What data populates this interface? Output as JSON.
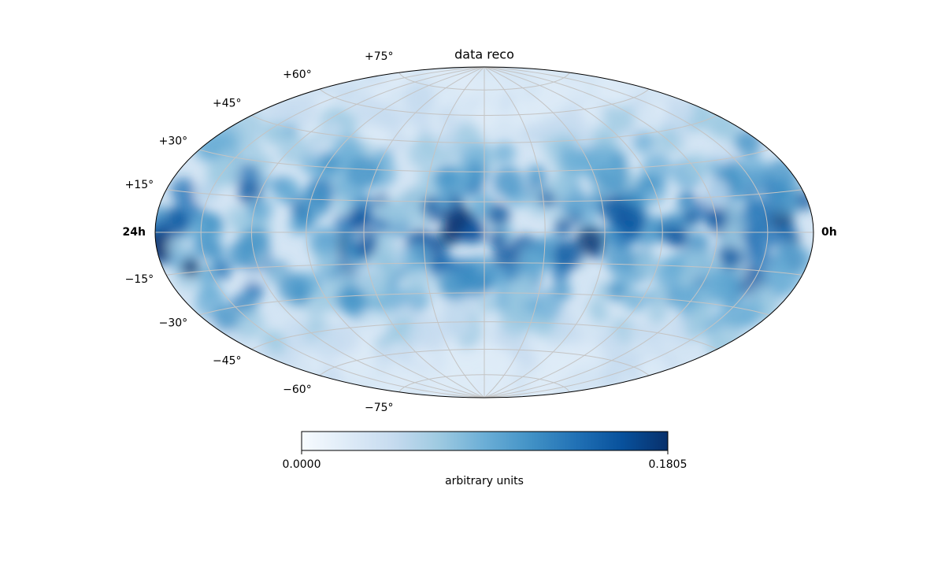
{
  "chart_data": {
    "type": "skymap",
    "title": "data reco",
    "lat_ticks": [
      {
        "value": 75,
        "label": "+75°"
      },
      {
        "value": 60,
        "label": "+60°"
      },
      {
        "value": 45,
        "label": "+45°"
      },
      {
        "value": 30,
        "label": "+30°"
      },
      {
        "value": 15,
        "label": "+15°"
      },
      {
        "value": -15,
        "label": "−15°"
      },
      {
        "value": -30,
        "label": "−30°"
      },
      {
        "value": -45,
        "label": "−45°"
      },
      {
        "value": -60,
        "label": "−60°"
      },
      {
        "value": -75,
        "label": "−75°"
      }
    ],
    "lon_ticks": [
      {
        "value": 24,
        "label": "24h"
      },
      {
        "value": 0,
        "label": "0h"
      }
    ],
    "colorbar": {
      "label": "arbitrary units",
      "lim": [
        0,
        0.1805
      ],
      "ticks": [
        {
          "value": 0,
          "label": "0.0000"
        },
        {
          "value": 0.1805,
          "label": "0.1805"
        }
      ]
    },
    "grid": true
  }
}
